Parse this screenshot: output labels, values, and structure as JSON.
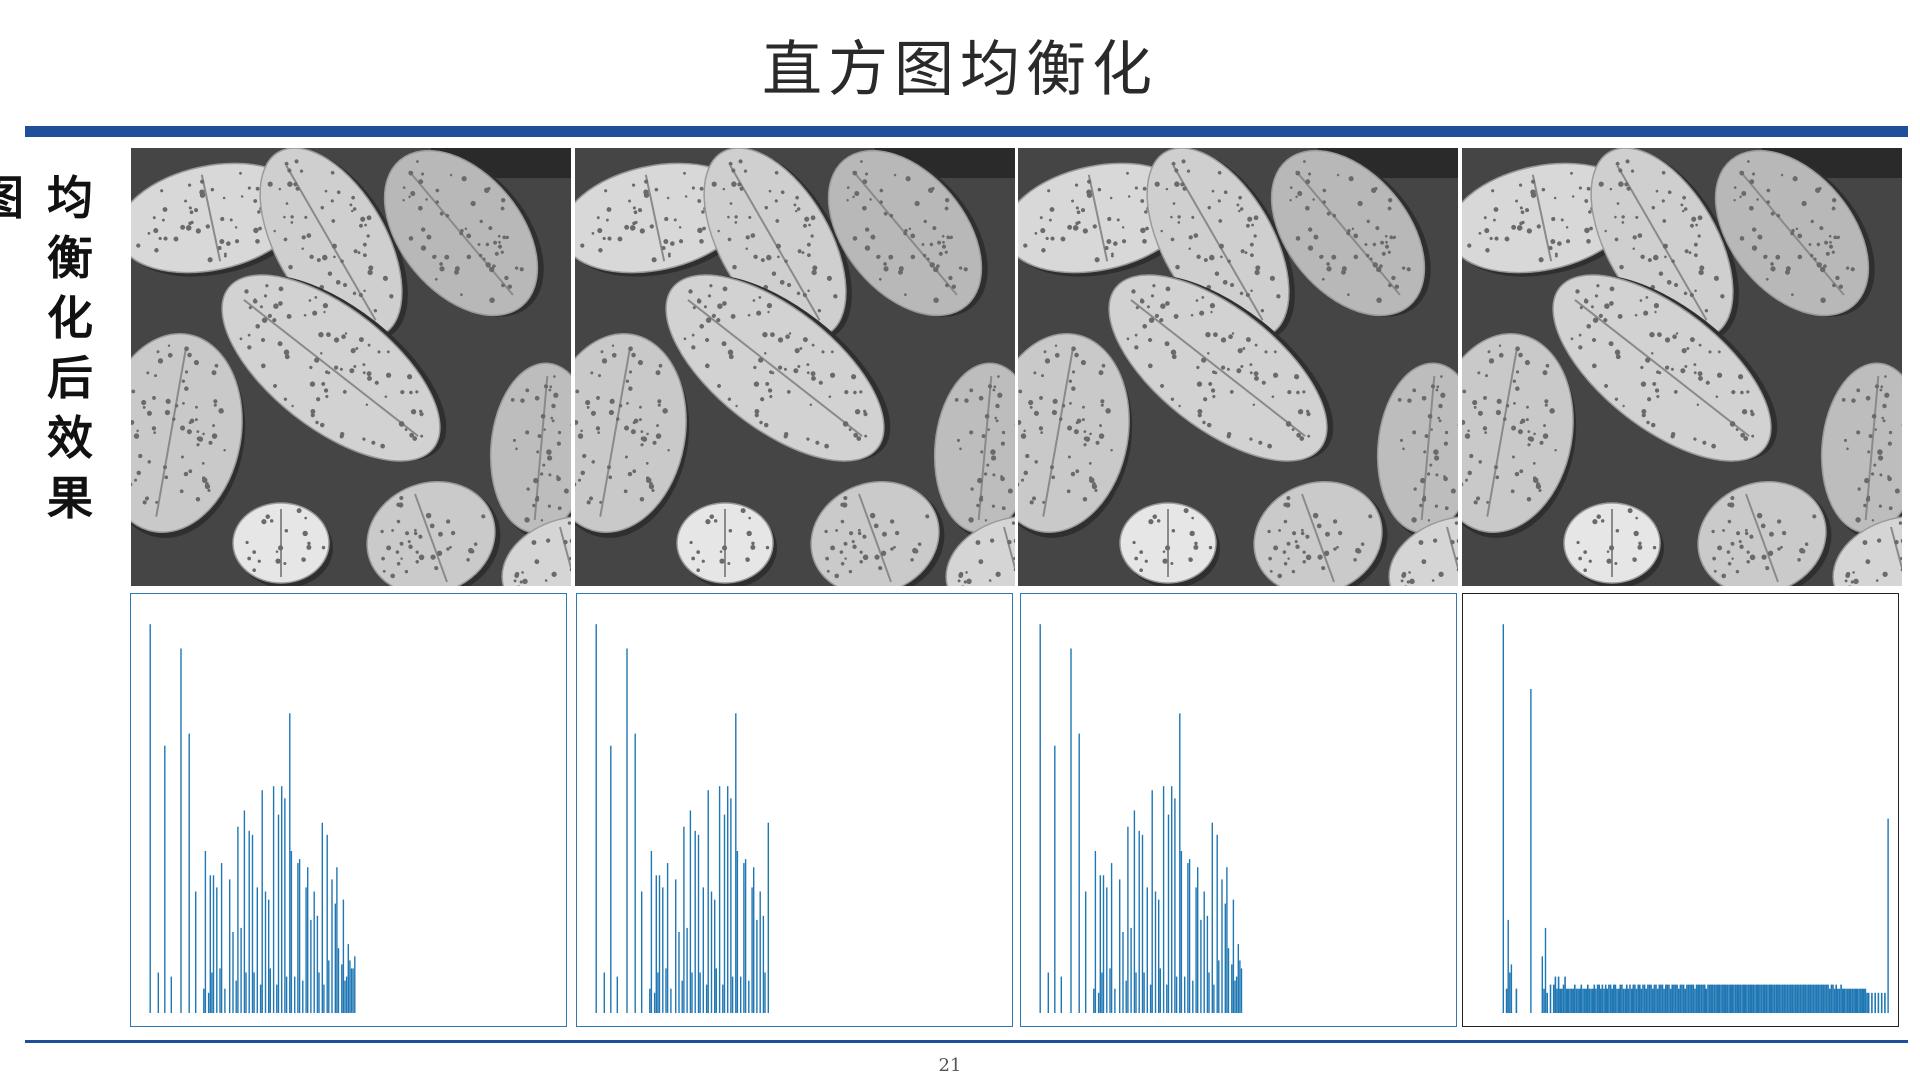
{
  "slide": {
    "title": "直方图均衡化",
    "side_label_chars": [
      "均",
      "衡",
      "化",
      "后",
      "效",
      "果"
    ],
    "side_clip_char": "图",
    "page_number": "21"
  },
  "colors": {
    "rule": "#1f4e9a",
    "histogram_bar": "#1f77b4",
    "histogram_border": "#2c7bb0"
  },
  "panels": [
    {
      "image": "pollen-grains-photo",
      "histogram": "sparse"
    },
    {
      "image": "pollen-grains-photo",
      "histogram": "sparse"
    },
    {
      "image": "pollen-grains-photo",
      "histogram": "sparse"
    },
    {
      "image": "pollen-grains-photo",
      "histogram": "sparse-with-dense-tail"
    }
  ],
  "chart_data": [
    {
      "type": "bar",
      "title": "",
      "xlabel": "",
      "ylabel": "",
      "xlim": [
        0,
        255
      ],
      "ylim": [
        0,
        1
      ],
      "x": [
        4,
        9,
        13,
        17,
        23,
        28,
        32,
        37,
        38,
        40,
        41,
        42,
        43,
        45,
        47,
        48,
        50,
        53,
        55,
        57,
        58,
        60,
        62,
        63,
        65,
        67,
        68,
        70,
        72,
        73,
        75,
        77,
        78,
        80,
        82,
        83,
        85,
        87,
        88,
        90,
        91,
        93,
        95,
        96,
        98,
        100,
        101,
        103,
        105,
        107,
        108,
        110,
        111,
        113,
        114,
        116,
        118,
        119,
        120,
        122,
        123,
        124,
        125,
        126,
        127,
        128,
        129,
        130
      ],
      "values": [
        0.96,
        0.1,
        0.66,
        0.09,
        0.9,
        0.69,
        0.3,
        0.06,
        0.4,
        0.05,
        0.34,
        0.1,
        0.34,
        0.31,
        0.11,
        0.37,
        0.06,
        0.33,
        0.2,
        0.08,
        0.46,
        0.21,
        0.5,
        0.1,
        0.45,
        0.44,
        0.1,
        0.31,
        0.07,
        0.55,
        0.3,
        0.28,
        0.11,
        0.56,
        0.07,
        0.49,
        0.56,
        0.53,
        0.09,
        0.74,
        0.4,
        0.09,
        0.37,
        0.38,
        0.08,
        0.31,
        0.36,
        0.23,
        0.3,
        0.24,
        0.1,
        0.47,
        0.07,
        0.44,
        0.13,
        0.33,
        0.27,
        0.36,
        0.16,
        0.12,
        0.28,
        0.08,
        0.09,
        0.17,
        0.13,
        0.11,
        0.11,
        0.14
      ]
    },
    {
      "type": "bar",
      "title": "",
      "xlabel": "",
      "ylabel": "",
      "xlim": [
        0,
        255
      ],
      "ylim": [
        0,
        1
      ],
      "x": [
        4,
        9,
        13,
        17,
        23,
        28,
        32,
        37,
        38,
        40,
        41,
        42,
        43,
        45,
        47,
        48,
        50,
        53,
        55,
        57,
        58,
        60,
        62,
        63,
        65,
        67,
        68,
        70,
        72,
        73,
        75,
        77,
        78,
        80,
        82,
        83,
        85,
        87,
        88,
        90,
        91,
        93,
        95,
        96,
        98,
        100,
        101,
        103,
        105,
        107,
        108,
        110
      ],
      "values": [
        0.96,
        0.1,
        0.66,
        0.09,
        0.9,
        0.69,
        0.3,
        0.06,
        0.4,
        0.05,
        0.34,
        0.1,
        0.34,
        0.31,
        0.11,
        0.37,
        0.06,
        0.33,
        0.2,
        0.08,
        0.46,
        0.21,
        0.5,
        0.1,
        0.45,
        0.44,
        0.1,
        0.31,
        0.07,
        0.55,
        0.3,
        0.28,
        0.11,
        0.56,
        0.07,
        0.49,
        0.56,
        0.53,
        0.09,
        0.74,
        0.4,
        0.09,
        0.37,
        0.38,
        0.08,
        0.31,
        0.36,
        0.23,
        0.3,
        0.24,
        0.1,
        0.47
      ]
    },
    {
      "type": "bar",
      "title": "",
      "xlabel": "",
      "ylabel": "",
      "xlim": [
        0,
        255
      ],
      "ylim": [
        0,
        1
      ],
      "x": [
        4,
        9,
        13,
        17,
        23,
        28,
        32,
        37,
        38,
        40,
        41,
        42,
        43,
        45,
        47,
        48,
        50,
        53,
        55,
        57,
        58,
        60,
        62,
        63,
        65,
        67,
        68,
        70,
        72,
        73,
        75,
        77,
        78,
        80,
        82,
        83,
        85,
        87,
        88,
        90,
        91,
        93,
        95,
        96,
        98,
        100,
        101,
        103,
        105,
        107,
        108,
        110,
        111,
        113,
        114,
        116,
        118,
        119,
        120,
        122,
        123,
        124,
        125,
        126,
        127,
        128
      ],
      "values": [
        0.96,
        0.1,
        0.66,
        0.09,
        0.9,
        0.69,
        0.3,
        0.06,
        0.4,
        0.05,
        0.34,
        0.1,
        0.34,
        0.31,
        0.11,
        0.37,
        0.06,
        0.33,
        0.2,
        0.08,
        0.46,
        0.21,
        0.5,
        0.1,
        0.45,
        0.44,
        0.1,
        0.31,
        0.07,
        0.55,
        0.3,
        0.28,
        0.11,
        0.56,
        0.07,
        0.49,
        0.56,
        0.53,
        0.09,
        0.74,
        0.4,
        0.09,
        0.37,
        0.38,
        0.08,
        0.31,
        0.36,
        0.23,
        0.3,
        0.24,
        0.1,
        0.47,
        0.07,
        0.44,
        0.13,
        0.33,
        0.27,
        0.36,
        0.16,
        0.12,
        0.28,
        0.08,
        0.09,
        0.17,
        0.13,
        0.11
      ]
    },
    {
      "type": "bar",
      "title": "",
      "xlabel": "",
      "ylabel": "",
      "xlim": [
        0,
        255
      ],
      "ylim": [
        0,
        1
      ],
      "x": [
        17,
        19,
        20,
        21,
        22,
        25,
        34,
        41,
        42,
        43,
        44,
        46,
        48,
        49,
        50,
        51,
        52,
        53,
        54,
        55,
        56,
        57,
        58,
        59,
        60,
        61,
        62,
        63,
        64,
        65,
        66,
        67,
        68,
        69,
        70,
        71,
        72,
        73,
        74,
        75,
        76,
        77,
        78,
        79,
        80,
        81,
        82,
        83,
        84,
        85,
        86,
        87,
        88,
        89,
        90,
        91,
        92,
        93,
        94,
        95,
        96,
        97,
        98,
        99,
        100,
        101,
        102,
        103,
        104,
        105,
        106,
        107,
        108,
        109,
        110,
        111,
        112,
        113,
        114,
        115,
        116,
        117,
        118,
        119,
        120,
        121,
        122,
        123,
        124,
        125,
        126,
        127,
        128,
        129,
        130,
        131,
        132,
        133,
        134,
        135,
        136,
        137,
        138,
        139,
        140,
        141,
        142,
        143,
        144,
        145,
        146,
        147,
        148,
        149,
        150,
        151,
        152,
        153,
        154,
        155,
        156,
        157,
        158,
        159,
        160,
        161,
        162,
        163,
        164,
        165,
        166,
        167,
        168,
        169,
        170,
        171,
        172,
        173,
        174,
        175,
        176,
        177,
        178,
        179,
        180,
        181,
        182,
        183,
        184,
        185,
        186,
        187,
        188,
        189,
        190,
        191,
        192,
        193,
        194,
        195,
        196,
        197,
        198,
        199,
        200,
        201,
        202,
        203,
        204,
        205,
        206,
        207,
        208,
        209,
        210,
        211,
        212,
        213,
        214,
        215,
        216,
        217,
        218,
        219,
        220,
        221,
        222,
        223,
        224,
        225,
        226,
        227,
        228,
        229,
        230,
        231,
        232,
        233,
        234,
        235,
        236,
        237,
        238,
        239,
        240,
        241,
        242,
        244,
        246,
        248,
        250,
        252,
        254
      ],
      "values": [
        0.96,
        0.06,
        0.23,
        0.1,
        0.12,
        0.06,
        0.8,
        0.14,
        0.06,
        0.21,
        0.05,
        0.07,
        0.07,
        0.09,
        0.06,
        0.09,
        0.06,
        0.06,
        0.07,
        0.09,
        0.06,
        0.06,
        0.06,
        0.06,
        0.06,
        0.07,
        0.06,
        0.06,
        0.06,
        0.07,
        0.06,
        0.06,
        0.06,
        0.07,
        0.06,
        0.06,
        0.06,
        0.07,
        0.06,
        0.07,
        0.07,
        0.06,
        0.07,
        0.06,
        0.07,
        0.06,
        0.07,
        0.07,
        0.06,
        0.07,
        0.07,
        0.06,
        0.06,
        0.07,
        0.07,
        0.06,
        0.06,
        0.07,
        0.06,
        0.07,
        0.06,
        0.07,
        0.07,
        0.06,
        0.07,
        0.07,
        0.06,
        0.07,
        0.07,
        0.06,
        0.07,
        0.07,
        0.07,
        0.06,
        0.07,
        0.07,
        0.06,
        0.07,
        0.07,
        0.07,
        0.06,
        0.07,
        0.07,
        0.07,
        0.06,
        0.07,
        0.07,
        0.07,
        0.07,
        0.06,
        0.07,
        0.07,
        0.07,
        0.06,
        0.07,
        0.07,
        0.07,
        0.07,
        0.07,
        0.06,
        0.07,
        0.07,
        0.07,
        0.07,
        0.07,
        0.07,
        0.06,
        0.07,
        0.07,
        0.07,
        0.07,
        0.07,
        0.07,
        0.07,
        0.07,
        0.07,
        0.07,
        0.07,
        0.07,
        0.07,
        0.07,
        0.07,
        0.07,
        0.07,
        0.07,
        0.07,
        0.07,
        0.07,
        0.07,
        0.07,
        0.07,
        0.07,
        0.07,
        0.07,
        0.07,
        0.07,
        0.07,
        0.07,
        0.07,
        0.07,
        0.07,
        0.07,
        0.07,
        0.07,
        0.07,
        0.07,
        0.07,
        0.07,
        0.07,
        0.07,
        0.07,
        0.07,
        0.07,
        0.07,
        0.07,
        0.07,
        0.07,
        0.07,
        0.07,
        0.07,
        0.07,
        0.07,
        0.07,
        0.07,
        0.07,
        0.07,
        0.07,
        0.07,
        0.07,
        0.07,
        0.07,
        0.07,
        0.07,
        0.07,
        0.07,
        0.07,
        0.07,
        0.07,
        0.07,
        0.07,
        0.07,
        0.07,
        0.06,
        0.07,
        0.07,
        0.06,
        0.07,
        0.06,
        0.06,
        0.07,
        0.06,
        0.06,
        0.06,
        0.06,
        0.06,
        0.06,
        0.06,
        0.06,
        0.06,
        0.06,
        0.06,
        0.06,
        0.06,
        0.06,
        0.06,
        0.05,
        0.05,
        0.05,
        0.05,
        0.05,
        0.05,
        0.05,
        0.48
      ]
    }
  ]
}
